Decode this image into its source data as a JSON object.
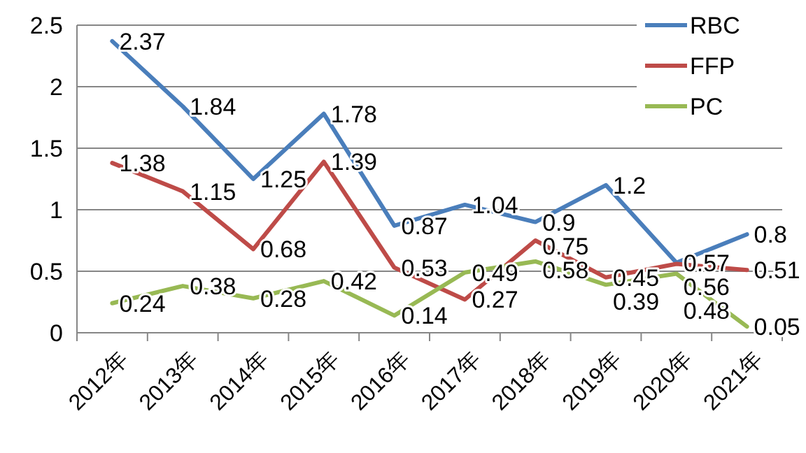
{
  "chart_data": {
    "type": "line",
    "categories": [
      "2012年",
      "2013年",
      "2014年",
      "2015年",
      "2016年",
      "2017年",
      "2018年",
      "2019年",
      "2020年",
      "2021年"
    ],
    "series": [
      {
        "name": "RBC",
        "color": "#4a7ebb",
        "values": [
          2.37,
          1.84,
          1.25,
          1.78,
          0.87,
          1.04,
          0.9,
          1.2,
          0.57,
          0.8
        ]
      },
      {
        "name": "FFP",
        "color": "#be4b48",
        "values": [
          1.38,
          1.15,
          0.68,
          1.39,
          0.53,
          0.27,
          0.75,
          0.45,
          0.56,
          0.51
        ]
      },
      {
        "name": "PC",
        "color": "#98b954",
        "values": [
          0.24,
          0.38,
          0.28,
          0.42,
          0.14,
          0.49,
          0.58,
          0.39,
          0.48,
          0.05
        ]
      }
    ],
    "ylim": [
      0,
      2.5
    ],
    "yticks": [
      0,
      0.5,
      1,
      1.5,
      2,
      2.5
    ],
    "grid": "y",
    "legend": "top right",
    "data_labels": true,
    "marker": "none",
    "line_style": "solid"
  }
}
